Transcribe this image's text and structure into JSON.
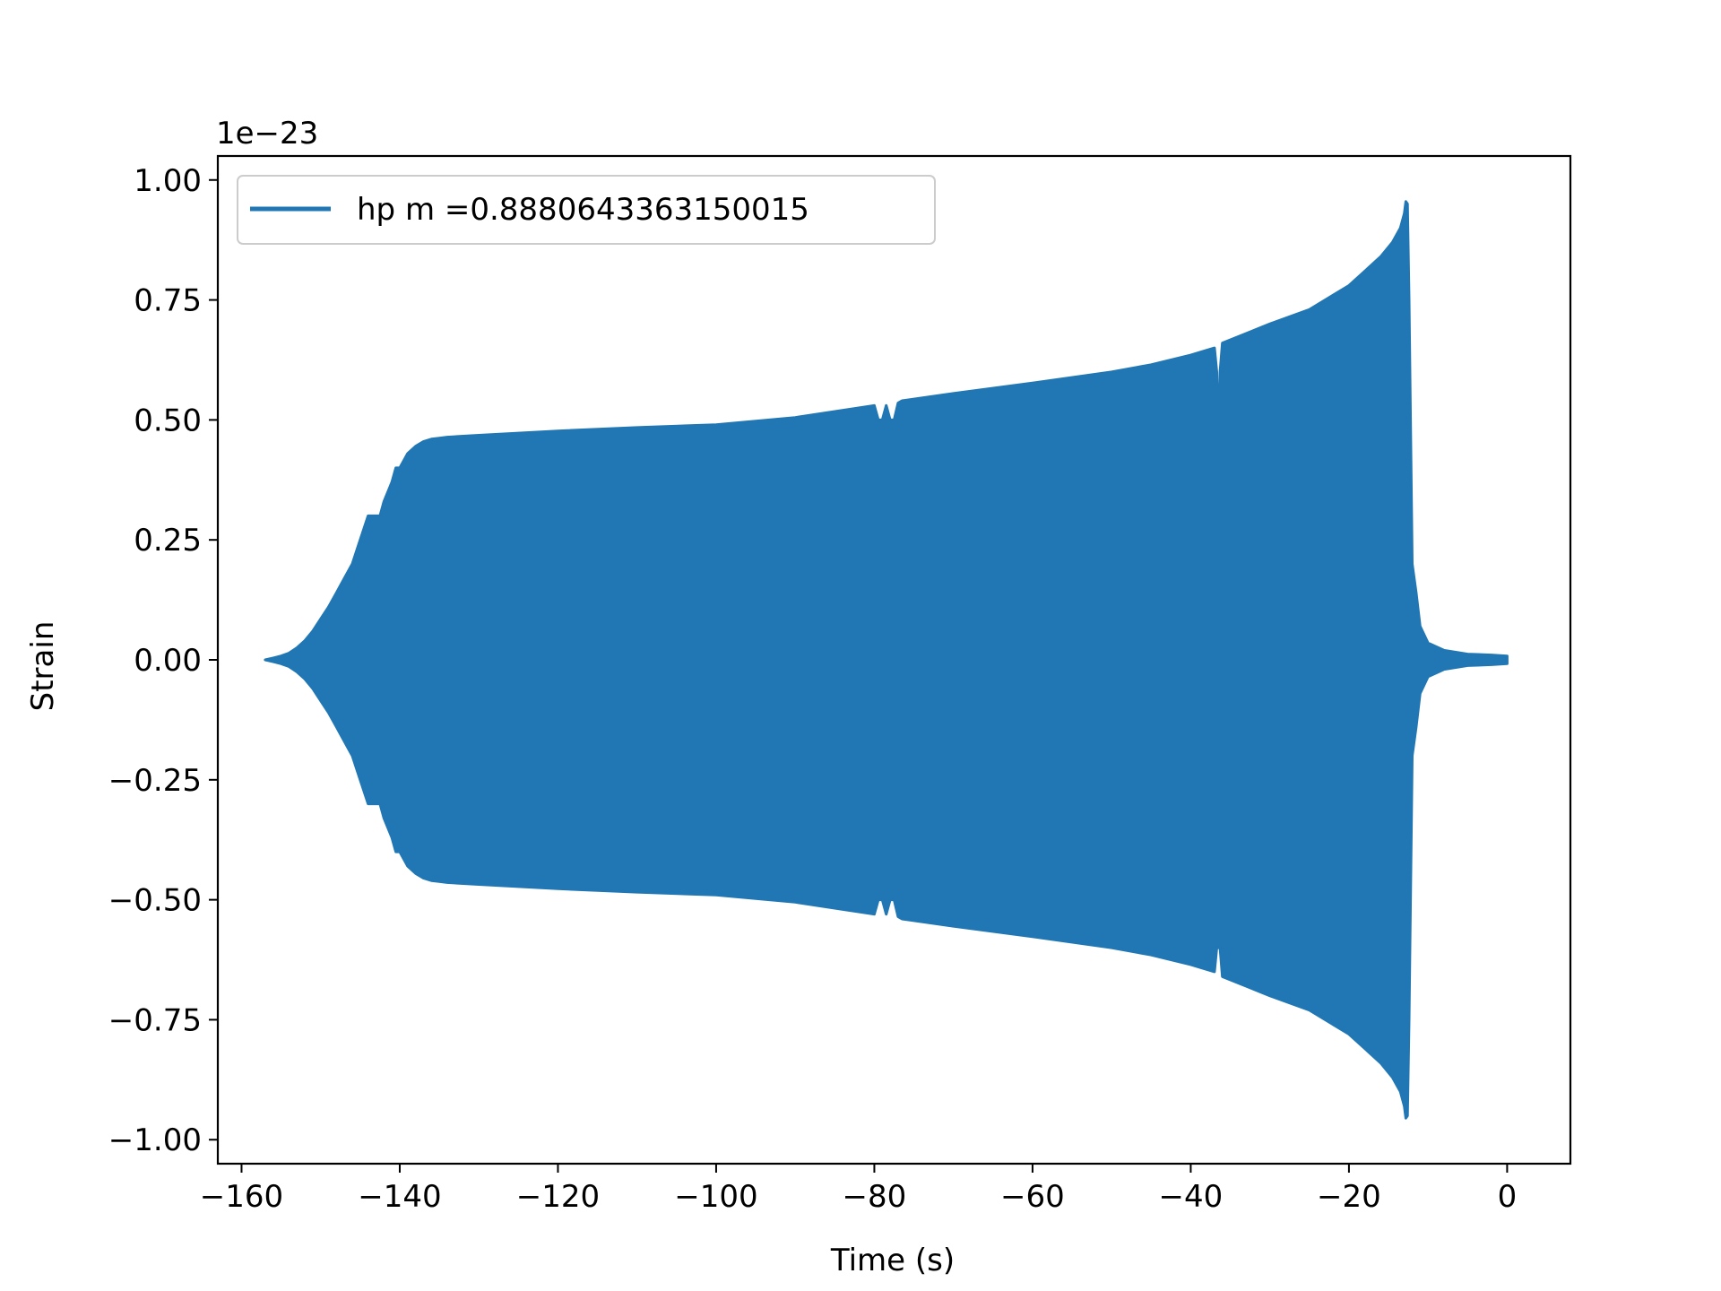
{
  "chart_data": {
    "type": "line",
    "title": "",
    "xlabel": "Time (s)",
    "ylabel": "Strain",
    "y_scale_label": "1e−23",
    "xlim": [
      -163,
      8
    ],
    "ylim": [
      -1.05,
      1.05
    ],
    "x_ticks": [
      -160,
      -140,
      -120,
      -100,
      -80,
      -60,
      -40,
      -20,
      0
    ],
    "x_tick_labels": [
      "−160",
      "−140",
      "−120",
      "−100",
      "−80",
      "−60",
      "−40",
      "−20",
      "0"
    ],
    "y_ticks": [
      1.0,
      0.75,
      0.5,
      0.25,
      0.0,
      -0.25,
      -0.5,
      -0.75,
      -1.0
    ],
    "y_tick_labels": [
      "1.00",
      "0.75",
      "0.50",
      "0.25",
      "0.00",
      "−0.25",
      "−0.50",
      "−0.75",
      "−1.00"
    ],
    "grid": false,
    "legend_position": "upper-left",
    "series": [
      {
        "name": "hp m =0.8880643363150015",
        "color": "#2077b4",
        "envelope": {
          "x": [
            -157,
            -156,
            -155,
            -154,
            -153,
            -152,
            -151,
            -150,
            -149,
            -148,
            -147,
            -146,
            -145,
            -144,
            -143,
            -142.5,
            -142,
            -141,
            -140.5,
            -140,
            -139,
            -138,
            -137,
            -136,
            -135,
            -134,
            -130,
            -120,
            -110,
            -100,
            -90,
            -80,
            -79.5,
            -79,
            -78.5,
            -78,
            -77.5,
            -77,
            -76.5,
            -70,
            -60,
            -50,
            -45,
            -40,
            -37,
            -36.7,
            -36.5,
            -36.3,
            -36,
            -33,
            -30,
            -25,
            -22,
            -20,
            -18,
            -16,
            -14.5,
            -13.5,
            -13,
            -12.8,
            -12.6,
            -12.4,
            -12,
            -11.5,
            -11,
            -10,
            -8,
            -5,
            -2,
            0
          ],
          "upper": [
            0.0,
            0.004,
            0.008,
            0.014,
            0.025,
            0.04,
            0.06,
            0.085,
            0.11,
            0.14,
            0.17,
            0.2,
            0.25,
            0.3,
            0.3,
            0.3,
            0.33,
            0.37,
            0.4,
            0.4,
            0.43,
            0.445,
            0.455,
            0.46,
            0.462,
            0.464,
            0.468,
            0.477,
            0.484,
            0.49,
            0.505,
            0.53,
            0.5,
            0.5,
            0.53,
            0.5,
            0.5,
            0.535,
            0.54,
            0.555,
            0.577,
            0.6,
            0.615,
            0.635,
            0.65,
            0.6,
            0.45,
            0.6,
            0.66,
            0.68,
            0.7,
            0.73,
            0.76,
            0.78,
            0.81,
            0.84,
            0.87,
            0.9,
            0.93,
            0.955,
            0.95,
            0.75,
            0.2,
            0.14,
            0.07,
            0.035,
            0.02,
            0.012,
            0.01,
            0.008
          ],
          "lower": [
            0.0,
            -0.004,
            -0.008,
            -0.014,
            -0.025,
            -0.04,
            -0.06,
            -0.085,
            -0.11,
            -0.14,
            -0.17,
            -0.2,
            -0.25,
            -0.3,
            -0.3,
            -0.3,
            -0.33,
            -0.37,
            -0.4,
            -0.4,
            -0.43,
            -0.445,
            -0.455,
            -0.46,
            -0.462,
            -0.464,
            -0.468,
            -0.477,
            -0.484,
            -0.49,
            -0.505,
            -0.53,
            -0.5,
            -0.5,
            -0.53,
            -0.5,
            -0.5,
            -0.535,
            -0.54,
            -0.555,
            -0.577,
            -0.6,
            -0.615,
            -0.635,
            -0.65,
            -0.6,
            -0.6,
            -0.6,
            -0.66,
            -0.68,
            -0.7,
            -0.73,
            -0.76,
            -0.78,
            -0.81,
            -0.84,
            -0.87,
            -0.9,
            -0.93,
            -0.955,
            -0.95,
            -0.75,
            -0.2,
            -0.14,
            -0.07,
            -0.035,
            -0.02,
            -0.012,
            -0.01,
            -0.008
          ]
        }
      }
    ]
  }
}
